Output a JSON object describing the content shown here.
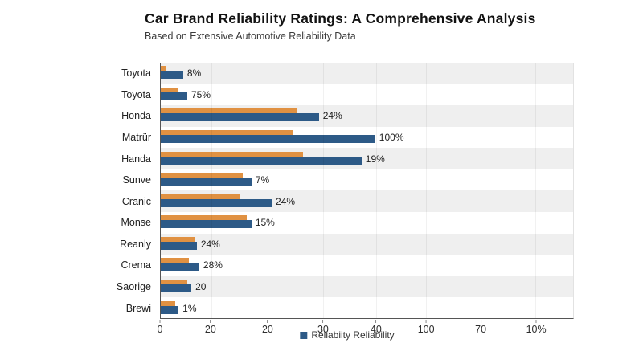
{
  "header": {
    "title": "Car Brand Reliability Ratings: A Comprehensive Analysis",
    "subtitle": "Based on Extensive Automotive Reliability Data"
  },
  "legend": {
    "label": "Reliabiity Reliability",
    "swatch_color": "#2D5A87"
  },
  "colors": {
    "orange_bar": "#E09142",
    "blue_bar": "#2D5A87",
    "band_gray": "#EFEFEF",
    "band_white": "#FFFFFF",
    "axis_line": "#555555",
    "gridline": "#E8E8E8"
  },
  "x_axis": {
    "ticks": [
      {
        "label": "0",
        "pos": 0
      },
      {
        "label": "20",
        "pos": 12.2
      },
      {
        "label": "20",
        "pos": 26.0
      },
      {
        "label": "30",
        "pos": 39.4
      },
      {
        "label": "40",
        "pos": 52.2
      },
      {
        "label": "100",
        "pos": 64.3
      },
      {
        "label": "70",
        "pos": 77.5
      },
      {
        "label": "10%",
        "pos": 90.9
      }
    ]
  },
  "rows": [
    {
      "category": "Toyota",
      "label": "8%",
      "orange_pct": 1.5,
      "blue_pct": 5.6
    },
    {
      "category": "Toyota",
      "label": "75%",
      "orange_pct": 4.3,
      "blue_pct": 6.6
    },
    {
      "category": "Honda",
      "label": "24%",
      "orange_pct": 33.0,
      "blue_pct": 38.4
    },
    {
      "category": "Matrür",
      "label": "100%",
      "orange_pct": 32.2,
      "blue_pct": 52.0
    },
    {
      "category": "Handa",
      "label": "19%",
      "orange_pct": 34.6,
      "blue_pct": 48.7
    },
    {
      "category": "Sunve",
      "label": "7%",
      "orange_pct": 20.0,
      "blue_pct": 22.1
    },
    {
      "category": "Cranic",
      "label": "24%",
      "orange_pct": 19.2,
      "blue_pct": 27.0
    },
    {
      "category": "Monse",
      "label": "15%",
      "orange_pct": 21.0,
      "blue_pct": 22.1
    },
    {
      "category": "Reanly",
      "label": "24%",
      "orange_pct": 8.5,
      "blue_pct": 8.9
    },
    {
      "category": "Crema",
      "label": "28%",
      "orange_pct": 7.0,
      "blue_pct": 9.5
    },
    {
      "category": "Saorige",
      "label": "20",
      "orange_pct": 6.6,
      "blue_pct": 7.6
    },
    {
      "category": "Brewi",
      "label": "1%",
      "orange_pct": 3.7,
      "blue_pct": 4.5
    }
  ],
  "chart_data": {
    "type": "bar",
    "orientation": "horizontal",
    "title": "Car Brand Reliability Ratings: A Comprehensive Analysis",
    "subtitle": "Based on Extensive Automotive Reliability Data",
    "categories": [
      "Toyota",
      "Toyota",
      "Honda",
      "Matrür",
      "Handa",
      "Sunve",
      "Cranic",
      "Monse",
      "Reanly",
      "Crema",
      "Saorige",
      "Brewi"
    ],
    "bar_value_labels": [
      "8%",
      "75%",
      "24%",
      "100%",
      "19%",
      "7%",
      "24%",
      "15%",
      "24%",
      "28%",
      "20",
      "1%"
    ],
    "series": [
      {
        "name": "orange-series",
        "color": "#E09142",
        "length_pct_of_axis": [
          1.5,
          4.3,
          33.0,
          32.2,
          34.6,
          20.0,
          19.2,
          21.0,
          8.5,
          7.0,
          6.6,
          3.7
        ]
      },
      {
        "name": "Reliabiity Reliability",
        "color": "#2D5A87",
        "length_pct_of_axis": [
          5.6,
          6.6,
          38.4,
          52.0,
          48.7,
          22.1,
          27.0,
          22.1,
          8.9,
          9.5,
          7.6,
          4.5
        ]
      }
    ],
    "x_tick_labels": [
      "0",
      "20",
      "20",
      "30",
      "40",
      "100",
      "70",
      "10%"
    ],
    "legend_position": "bottom",
    "legend_entries": [
      "Reliabiity Reliability"
    ],
    "grid": "vertical-faint",
    "row_banding": "alternating gray/white"
  }
}
